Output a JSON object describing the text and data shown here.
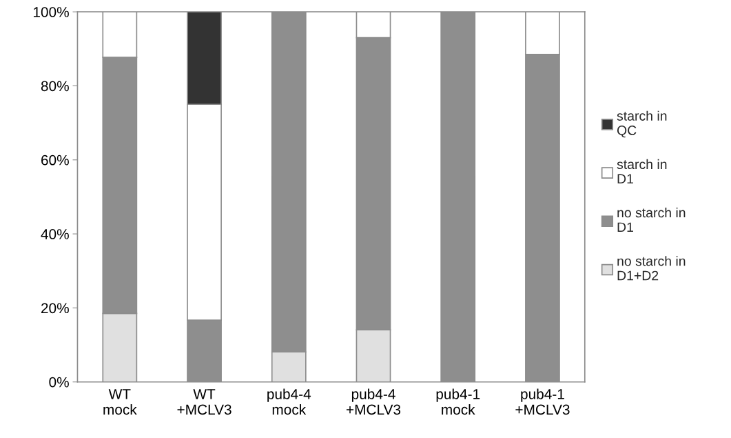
{
  "chart_data": {
    "type": "bar",
    "stacked": true,
    "categories": [
      "WT mock",
      "WT +MCLV3",
      "pub4-4 mock",
      "pub4-4 +MCLV3",
      "pub4-1 mock",
      "pub4-1 +MCLV3"
    ],
    "series": [
      {
        "name": "no starch in D1+D2",
        "color": "#e0e0e0",
        "values": [
          18.5,
          0,
          8.1,
          14.1,
          0,
          0
        ]
      },
      {
        "name": "no starch in D1",
        "color": "#8e8e8e",
        "values": [
          69.2,
          16.7,
          91.9,
          78.9,
          100,
          88.5
        ]
      },
      {
        "name": "starch in D1",
        "color": "#ffffff",
        "values": [
          12.3,
          58.3,
          0,
          7.0,
          0,
          11.5
        ]
      },
      {
        "name": "starch in QC",
        "color": "#333333",
        "values": [
          0,
          25,
          0,
          0,
          0,
          0
        ]
      }
    ],
    "ylim": [
      0,
      100
    ],
    "yticks": [
      {
        "value": 0,
        "label": "0%"
      },
      {
        "value": 20,
        "label": "20%"
      },
      {
        "value": 40,
        "label": "40%"
      },
      {
        "value": 60,
        "label": "60%"
      },
      {
        "value": 80,
        "label": "80%"
      },
      {
        "value": 100,
        "label": "100%"
      }
    ],
    "grid": false,
    "legend": "right"
  }
}
